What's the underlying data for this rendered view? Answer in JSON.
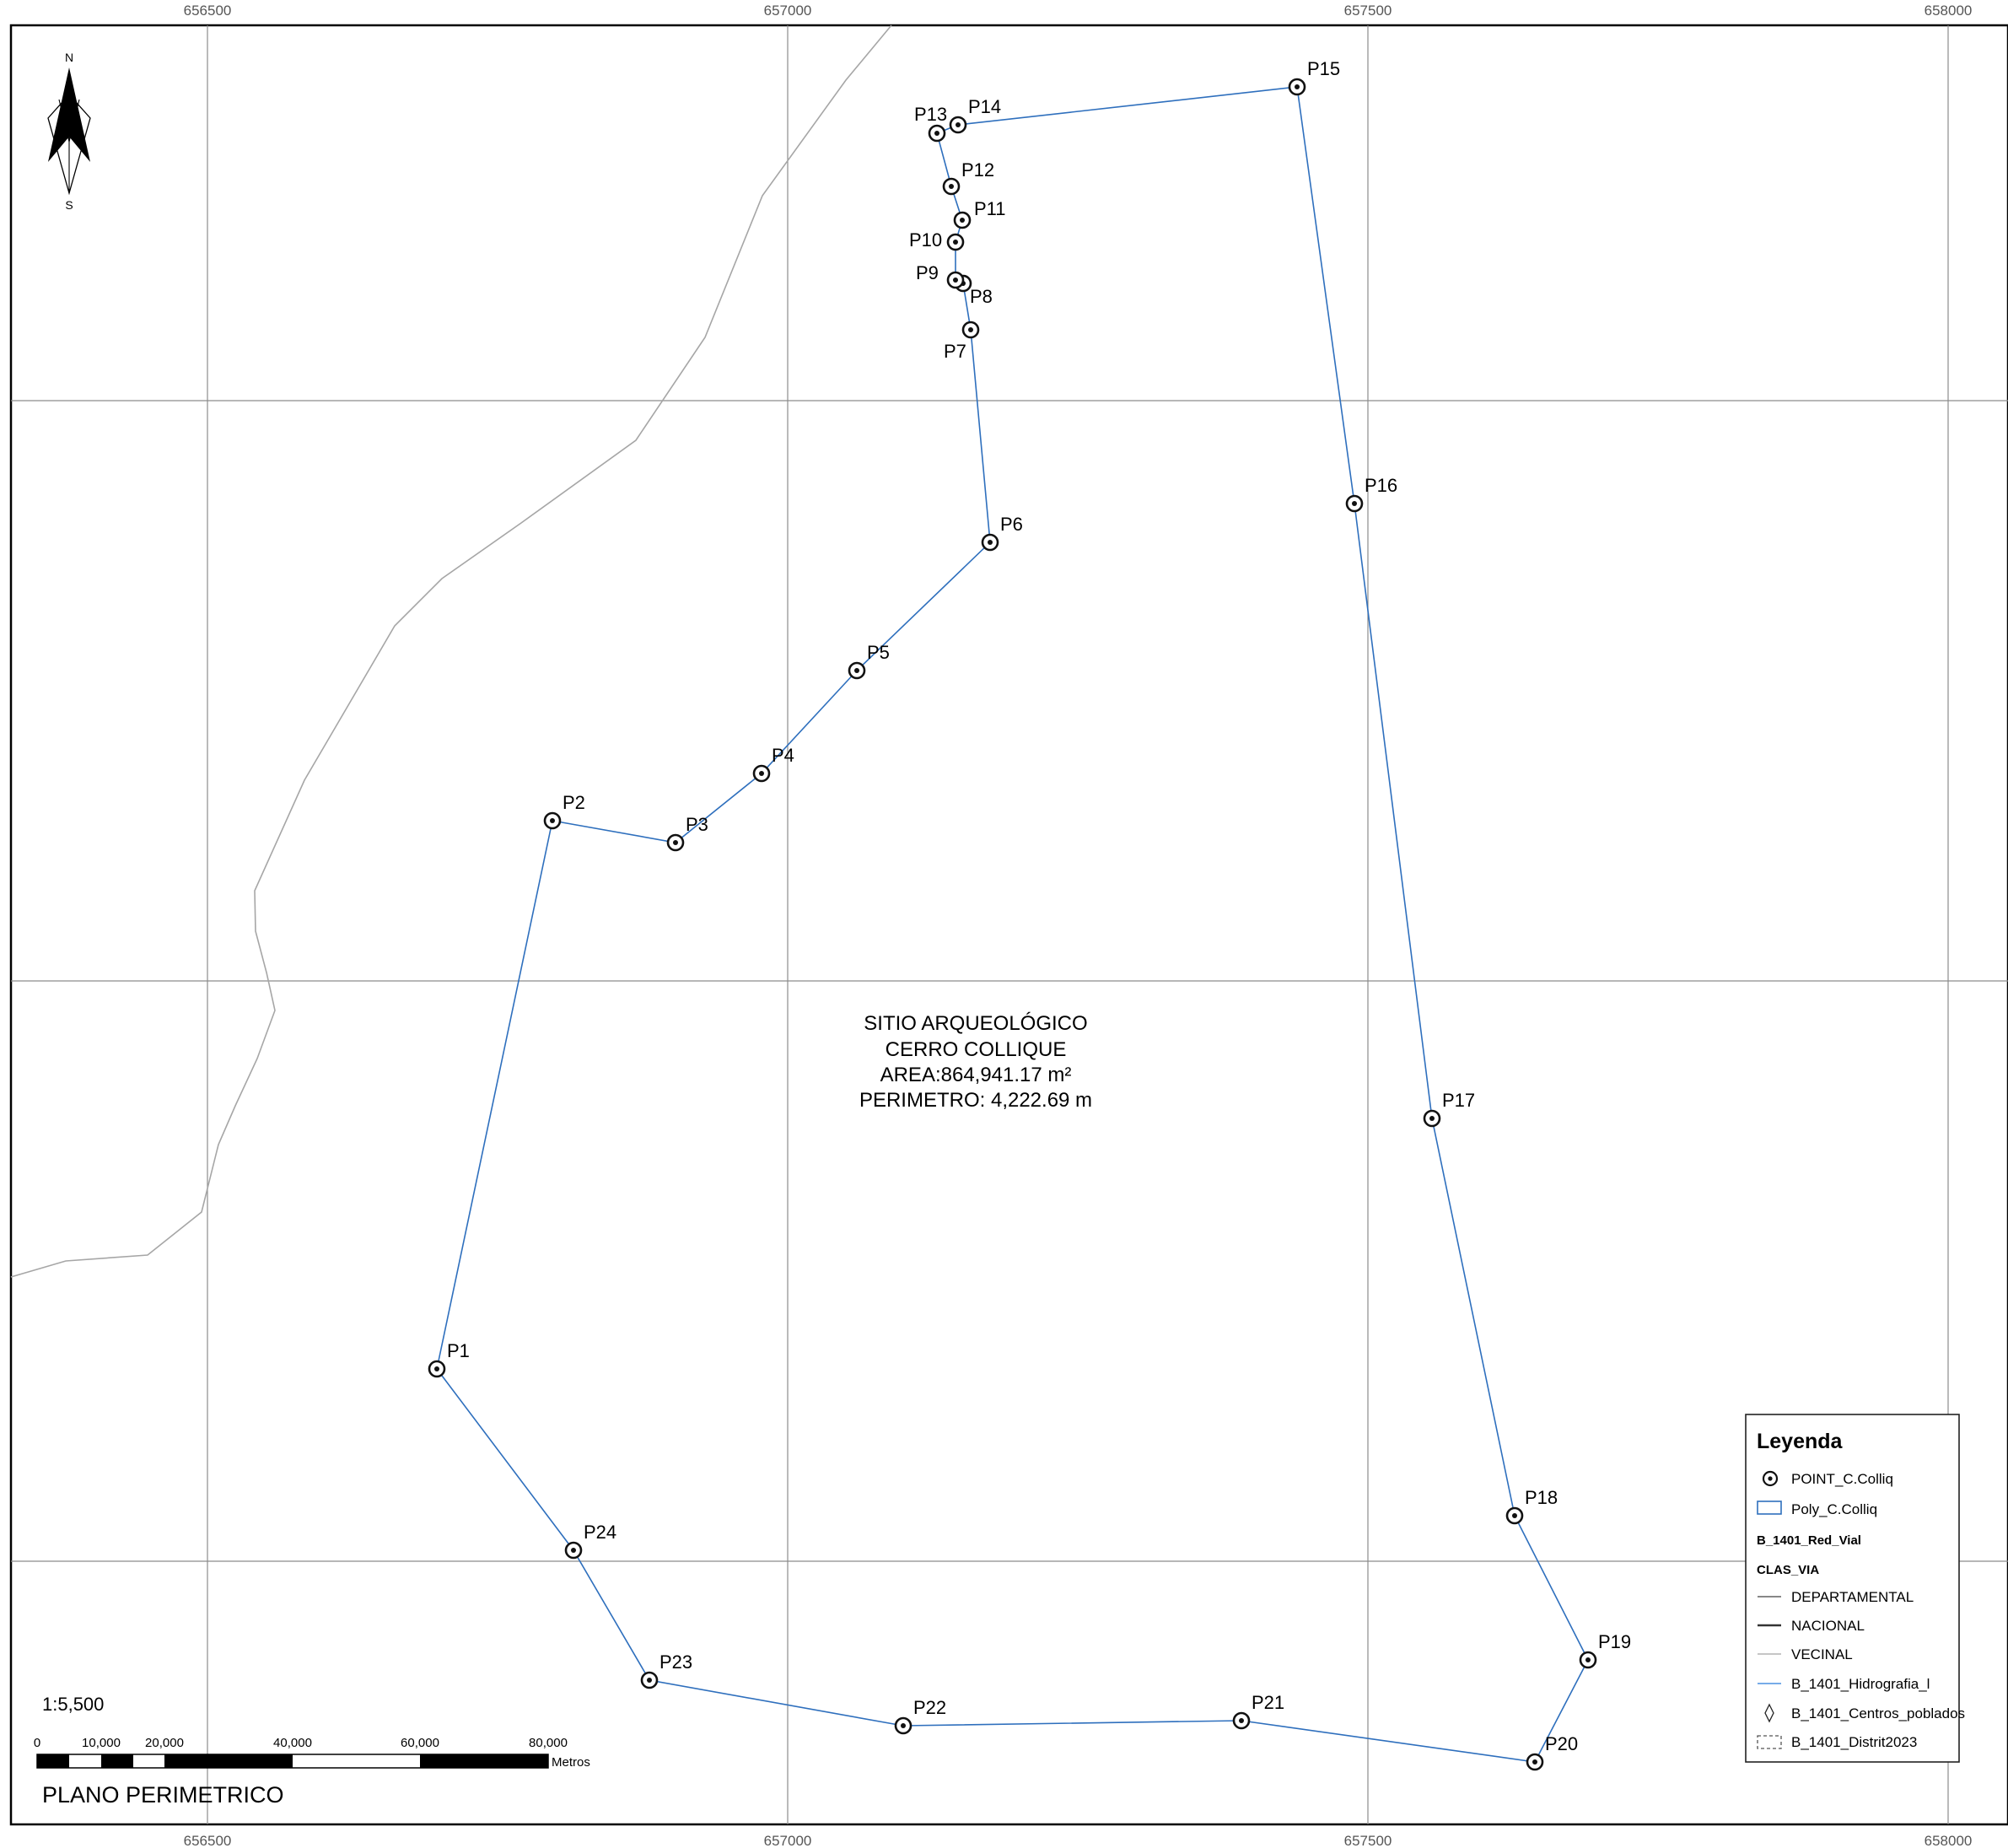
{
  "map": {
    "x_coords": [
      "656500",
      "657000",
      "657500",
      "658000"
    ],
    "scale_ratio": "1:5,500",
    "scale_bar": {
      "labels": [
        "0",
        "10,000",
        "20,000",
        "40,000",
        "60,000",
        "80,000"
      ],
      "unit": "Metros"
    },
    "plan_title": "PLANO PERIMETRICO",
    "north": {
      "n": "N",
      "s": "S"
    },
    "site_info": {
      "line1": "SITIO ARQUEOLÓGICO",
      "line2": "CERRO COLLIQUE",
      "line3": "AREA:864,941.17 m²",
      "line4": "PERIMETRO: 4,222.69 m"
    },
    "points": [
      "P1",
      "P2",
      "P3",
      "P4",
      "P5",
      "P6",
      "P7",
      "P8",
      "P9",
      "P10",
      "P11",
      "P12",
      "P13",
      "P14",
      "P15",
      "P16",
      "P17",
      "P18",
      "P19",
      "P20",
      "P21",
      "P22",
      "P23",
      "P24"
    ],
    "colors": {
      "boundary": "#2e6fbd",
      "road": "#a6a6a6",
      "grid": "#8c8c8c"
    }
  },
  "legend": {
    "title": "Leyenda",
    "items": [
      {
        "label": "POINT_C.Colliq",
        "icon": "point-symbol-icon"
      },
      {
        "label": "Poly_C.Colliq",
        "icon": "polygon-symbol-icon"
      },
      {
        "label": "B_1401_Red_Vial",
        "icon": ""
      },
      {
        "label": "CLAS_VIA",
        "icon": ""
      },
      {
        "label": "DEPARTAMENTAL",
        "icon": "line-symbol-icon"
      },
      {
        "label": "NACIONAL",
        "icon": "line-symbol-icon"
      },
      {
        "label": "VECINAL",
        "icon": "line-symbol-icon"
      },
      {
        "label": "B_1401_Hidrografia_l",
        "icon": "line-symbol-icon"
      },
      {
        "label": "B_1401_Centros_poblados",
        "icon": "diamond-icon"
      },
      {
        "label": "B_1401_Distrit2023",
        "icon": "dashed-box-icon"
      }
    ]
  }
}
